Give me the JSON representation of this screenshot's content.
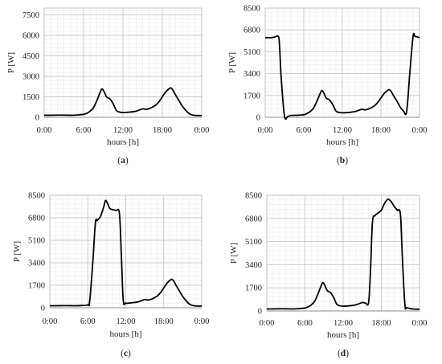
{
  "chart_data": [
    {
      "type": "line",
      "panel_label": "(a)",
      "panel_letter": "a",
      "xlabel": "hours [h]",
      "ylabel": "P [W]",
      "x_tick_labels": [
        "0:00",
        "6:00",
        "12:00",
        "18:00",
        "0:00"
      ],
      "x_ticks": [
        0,
        6,
        12,
        18,
        24
      ],
      "y_ticks": [
        0,
        1500,
        3000,
        4500,
        6000,
        7500
      ],
      "ylim": [
        0,
        8000
      ],
      "xlim": [
        0,
        24
      ],
      "grid": true,
      "series": [
        {
          "x": [
            0,
            1,
            2,
            3,
            4,
            5,
            6,
            6.5,
            7,
            7.5,
            8,
            8.5,
            8.8,
            9.1,
            9.5,
            10,
            10.5,
            11,
            11.5,
            12,
            13,
            14,
            15,
            15.5,
            16,
            16.5,
            17,
            17.5,
            18,
            18.5,
            19,
            19.3,
            19.6,
            20,
            20.5,
            21,
            21.5,
            22,
            22.5,
            23,
            24
          ],
          "y": [
            150,
            150,
            160,
            160,
            150,
            170,
            220,
            300,
            450,
            700,
            1200,
            1800,
            2080,
            1900,
            1500,
            1350,
            1000,
            500,
            380,
            350,
            380,
            450,
            620,
            580,
            640,
            750,
            900,
            1150,
            1500,
            1850,
            2080,
            2150,
            2000,
            1650,
            1250,
            850,
            550,
            300,
            180,
            140,
            130
          ]
        }
      ]
    },
    {
      "type": "line",
      "panel_label": "(b)",
      "panel_letter": "b",
      "xlabel": "hours [h]",
      "ylabel": "P [W]",
      "x_tick_labels": [
        "0:00",
        "6:00",
        "12:00",
        "18:00",
        "0:00"
      ],
      "x_ticks": [
        0,
        6,
        12,
        18,
        24
      ],
      "y_ticks": [
        0,
        1700,
        3400,
        5100,
        6800,
        8500
      ],
      "ylim": [
        0,
        8500
      ],
      "xlim": [
        0,
        24
      ],
      "grid": true,
      "series": [
        {
          "x": [
            0,
            1,
            1.5,
            2,
            2.2,
            2.5,
            3,
            3.5,
            4,
            5,
            6,
            6.5,
            7,
            7.5,
            8,
            8.5,
            8.8,
            9.1,
            9.5,
            10,
            10.5,
            11,
            11.5,
            12,
            13,
            14,
            15,
            15.5,
            16,
            16.5,
            17,
            17.5,
            18,
            18.5,
            19,
            19.3,
            19.6,
            20,
            20.5,
            21,
            21.5,
            22,
            22.5,
            23,
            23.3,
            24
          ],
          "y": [
            6200,
            6200,
            6250,
            6300,
            5800,
            3000,
            100,
            60,
            150,
            160,
            200,
            300,
            450,
            700,
            1200,
            1800,
            2080,
            1900,
            1500,
            1350,
            1000,
            500,
            380,
            350,
            380,
            450,
            620,
            580,
            640,
            750,
            900,
            1150,
            1500,
            1850,
            2080,
            2150,
            2000,
            1650,
            1250,
            800,
            500,
            450,
            3500,
            6300,
            6300,
            6200
          ]
        }
      ]
    },
    {
      "type": "line",
      "panel_label": "(c)",
      "panel_letter": "c",
      "xlabel": "hours [h]",
      "ylabel": "P [W]",
      "x_tick_labels": [
        "0:00",
        "6:00",
        "12:00",
        "18:00",
        "0:00"
      ],
      "x_ticks": [
        0,
        6,
        12,
        18,
        24
      ],
      "y_ticks": [
        0,
        1700,
        3400,
        5100,
        6800,
        8500
      ],
      "ylim": [
        0,
        8500
      ],
      "xlim": [
        0,
        24
      ],
      "grid": true,
      "series": [
        {
          "x": [
            0,
            1,
            2,
            3,
            4,
            5,
            6,
            6.3,
            6.8,
            7.2,
            7.5,
            8,
            8.5,
            8.8,
            9.1,
            9.5,
            10,
            10.5,
            11,
            11.3,
            11.6,
            12,
            13,
            14,
            15,
            15.5,
            16,
            16.5,
            17,
            17.5,
            18,
            18.5,
            19,
            19.3,
            19.6,
            20,
            20.5,
            21,
            21.5,
            22,
            22.5,
            23,
            24
          ],
          "y": [
            150,
            150,
            160,
            160,
            150,
            170,
            220,
            500,
            3500,
            6400,
            6600,
            6900,
            7600,
            8100,
            7900,
            7500,
            7400,
            7350,
            7100,
            4000,
            600,
            350,
            380,
            450,
            620,
            580,
            640,
            750,
            900,
            1150,
            1500,
            1850,
            2080,
            2150,
            2000,
            1650,
            1250,
            850,
            550,
            300,
            180,
            140,
            130
          ]
        }
      ]
    },
    {
      "type": "line",
      "panel_label": "(d)",
      "panel_letter": "d",
      "xlabel": "hours [h]",
      "ylabel": "P [W]",
      "x_tick_labels": [
        "0:00",
        "6:00",
        "12:00",
        "18:00",
        "0:00"
      ],
      "x_ticks": [
        0,
        6,
        12,
        18,
        24
      ],
      "y_ticks": [
        0,
        1700,
        3400,
        5100,
        6800,
        8500
      ],
      "ylim": [
        0,
        8500
      ],
      "xlim": [
        0,
        24
      ],
      "grid": true,
      "series": [
        {
          "x": [
            0,
            1,
            2,
            3,
            4,
            5,
            6,
            6.5,
            7,
            7.5,
            8,
            8.5,
            8.8,
            9.1,
            9.5,
            10,
            10.5,
            11,
            11.5,
            12,
            13,
            14,
            15,
            15.5,
            16,
            16.3,
            16.6,
            17,
            17.5,
            18,
            18.5,
            19,
            19.3,
            19.6,
            20,
            20.5,
            21,
            21.3,
            21.7,
            22,
            23,
            24
          ],
          "y": [
            150,
            150,
            160,
            160,
            150,
            170,
            220,
            300,
            450,
            700,
            1200,
            1800,
            2080,
            1900,
            1500,
            1350,
            1000,
            500,
            380,
            350,
            380,
            450,
            620,
            580,
            640,
            3000,
            6500,
            7000,
            7200,
            7400,
            7900,
            8200,
            8150,
            8000,
            7700,
            7400,
            7100,
            4000,
            500,
            250,
            140,
            130
          ]
        }
      ]
    }
  ]
}
